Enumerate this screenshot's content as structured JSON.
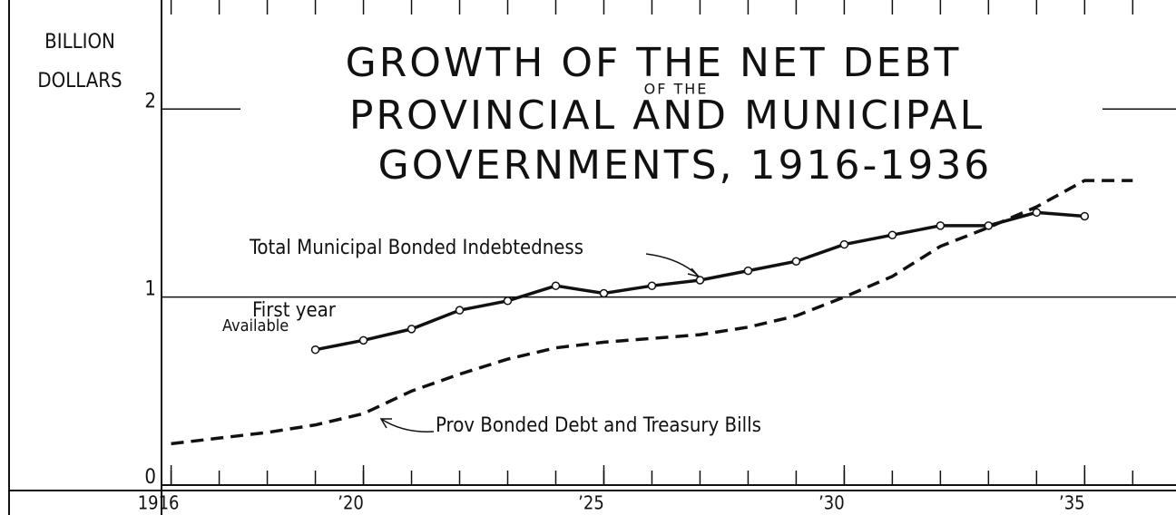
{
  "chart_data": {
    "type": "line",
    "title": [
      "GROWTH OF THE NET DEBT",
      "OF THE",
      "PROVINCIAL AND MUNICIPAL",
      "GOVERNMENTS, 1916-1936"
    ],
    "ylabel": [
      "BILLION",
      "DOLLARS"
    ],
    "annotations": [
      "First year",
      "Available"
    ],
    "xlim": [
      1915.8,
      1936.9
    ],
    "xticks": [
      {
        "value": 1916,
        "label": "1916"
      },
      {
        "value": 1920,
        "label": "’20"
      },
      {
        "value": 1925,
        "label": "’25"
      },
      {
        "value": 1930,
        "label": "’30"
      },
      {
        "value": 1935,
        "label": "’35"
      }
    ],
    "ylim": [
      0,
      2.58
    ],
    "yticks": [
      0,
      1,
      2
    ],
    "grid": true,
    "series": [
      {
        "name": "Total Municipal Bonded Indebtedness",
        "color": "#111111",
        "style": "solid",
        "markers": true,
        "x": [
          1919,
          1920,
          1921,
          1922,
          1923,
          1924,
          1925,
          1926,
          1927,
          1928,
          1929,
          1930,
          1931,
          1932,
          1933,
          1934,
          1935
        ],
        "values": [
          0.72,
          0.77,
          0.83,
          0.93,
          0.98,
          1.06,
          1.02,
          1.06,
          1.09,
          1.14,
          1.19,
          1.28,
          1.33,
          1.38,
          1.38,
          1.45,
          1.43
        ]
      },
      {
        "name": "Prov Bonded Debt and Treasury Bills",
        "color": "#111111",
        "style": "dashed",
        "markers": false,
        "x": [
          1916,
          1917,
          1918,
          1919,
          1920,
          1921,
          1922,
          1923,
          1924,
          1925,
          1926,
          1927,
          1928,
          1929,
          1930,
          1931,
          1932,
          1933,
          1934,
          1935,
          1936
        ],
        "values": [
          0.22,
          0.25,
          0.28,
          0.32,
          0.38,
          0.5,
          0.59,
          0.67,
          0.73,
          0.76,
          0.78,
          0.8,
          0.84,
          0.9,
          1.0,
          1.11,
          1.27,
          1.37,
          1.48,
          1.62,
          1.62
        ]
      }
    ]
  }
}
